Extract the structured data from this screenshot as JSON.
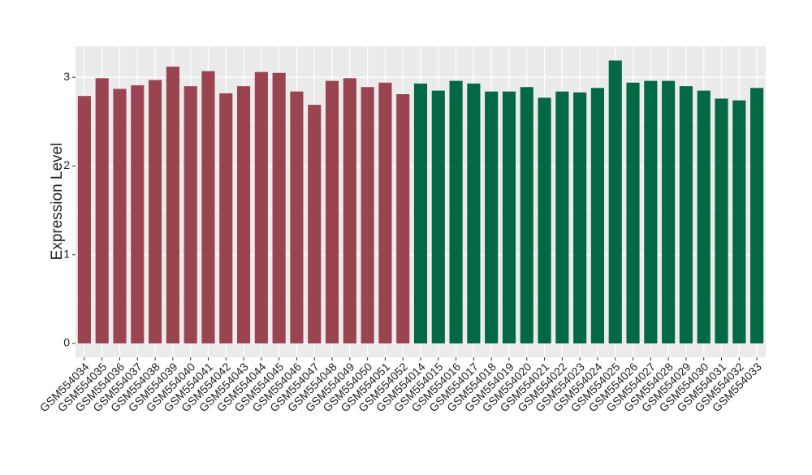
{
  "chart_data": {
    "type": "bar",
    "y_label": "Expression Level",
    "categories": [
      "GSM554034",
      "GSM554035",
      "GSM554036",
      "GSM554037",
      "GSM554038",
      "GSM554039",
      "GSM554040",
      "GSM554041",
      "GSM554042",
      "GSM554043",
      "GSM554044",
      "GSM554045",
      "GSM554046",
      "GSM554047",
      "GSM554048",
      "GSM554049",
      "GSM554050",
      "GSM554051",
      "GSM554052",
      "GSM554014",
      "GSM554015",
      "GSM554016",
      "GSM554017",
      "GSM554018",
      "GSM554019",
      "GSM554020",
      "GSM554021",
      "GSM554022",
      "GSM554023",
      "GSM554024",
      "GSM554025",
      "GSM554026",
      "GSM554027",
      "GSM554028",
      "GSM554029",
      "GSM554030",
      "GSM554031",
      "GSM554032",
      "GSM554033"
    ],
    "values": [
      2.79,
      2.99,
      2.87,
      2.91,
      2.97,
      3.12,
      2.9,
      3.07,
      2.82,
      2.9,
      3.06,
      3.05,
      2.84,
      2.69,
      2.96,
      2.99,
      2.89,
      2.94,
      2.81,
      2.93,
      2.85,
      2.96,
      2.93,
      2.84,
      2.84,
      2.89,
      2.77,
      2.84,
      2.83,
      2.88,
      3.19,
      2.94,
      2.96,
      2.96,
      2.9,
      2.85,
      2.76,
      2.74,
      2.88
    ],
    "bar_colors": [
      "#9b4451",
      "#9b4451",
      "#9b4451",
      "#9b4451",
      "#9b4451",
      "#9b4451",
      "#9b4451",
      "#9b4451",
      "#9b4451",
      "#9b4451",
      "#9b4451",
      "#9b4451",
      "#9b4451",
      "#9b4451",
      "#9b4451",
      "#9b4451",
      "#9b4451",
      "#9b4451",
      "#9b4451",
      "#036844",
      "#036844",
      "#036844",
      "#036844",
      "#036844",
      "#036844",
      "#036844",
      "#036844",
      "#036844",
      "#036844",
      "#036844",
      "#036844",
      "#036844",
      "#036844",
      "#036844",
      "#036844",
      "#036844",
      "#036844",
      "#036844",
      "#036844"
    ],
    "ylim": [
      -0.156,
      3.35
    ],
    "yticks": [
      0,
      1,
      2,
      3
    ],
    "grid": true
  }
}
